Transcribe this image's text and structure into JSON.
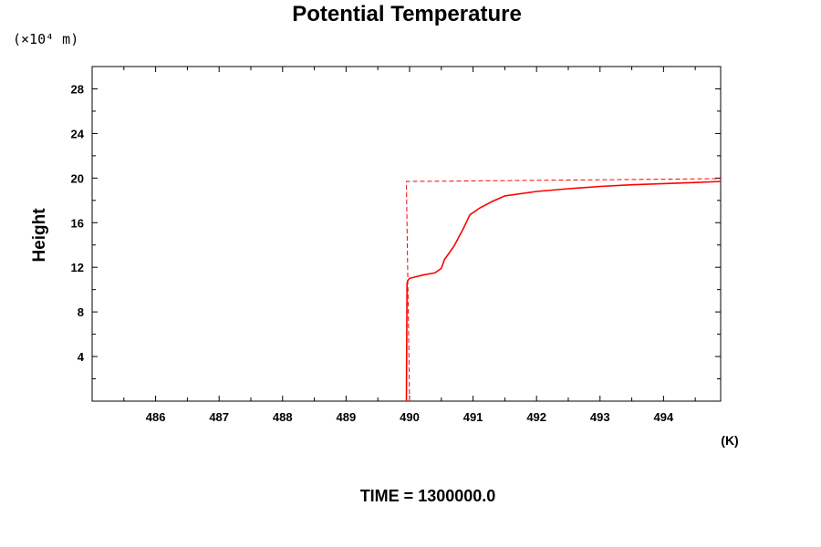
{
  "chart_data": {
    "type": "line",
    "title": "Potential Temperature",
    "xlabel": "(K)",
    "ylabel": "Height",
    "yunit": "(×10⁴ m)",
    "footer": "TIME = 1300000.0",
    "xlim": [
      485.0,
      494.9
    ],
    "ylim": [
      0,
      30
    ],
    "x_ticks": [
      486,
      487,
      488,
      489,
      490,
      491,
      492,
      493,
      494
    ],
    "y_ticks": [
      4,
      8,
      12,
      16,
      20,
      24,
      28
    ],
    "grid": false,
    "line_color": "#ff0000",
    "series": [
      {
        "style": "solid",
        "x": [
          489.95,
          489.96,
          489.97,
          490.0,
          490.2,
          490.4,
          490.5,
          490.55,
          490.7,
          490.85,
          490.95,
          491.1,
          491.3,
          491.5,
          492.0,
          492.5,
          493.0,
          493.5,
          494.0,
          494.5,
          494.9
        ],
        "y": [
          0.0,
          10.5,
          10.8,
          11.0,
          11.3,
          11.5,
          11.9,
          12.7,
          13.9,
          15.5,
          16.7,
          17.3,
          17.9,
          18.4,
          18.8,
          19.05,
          19.25,
          19.4,
          19.5,
          19.6,
          19.7
        ]
      },
      {
        "style": "dashed",
        "x": [
          490.0,
          489.95,
          490.5,
          491.0,
          492.0,
          493.0,
          494.0,
          494.9
        ],
        "y": [
          0.0,
          19.7,
          19.72,
          19.75,
          19.8,
          19.85,
          19.9,
          19.95
        ]
      }
    ]
  }
}
